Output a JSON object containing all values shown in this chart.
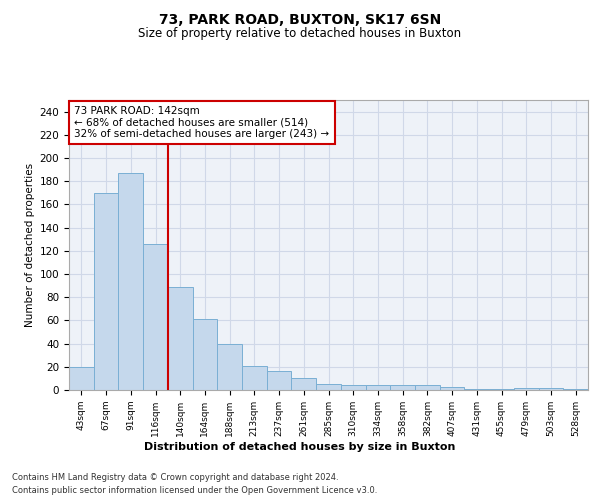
{
  "title_line1": "73, PARK ROAD, BUXTON, SK17 6SN",
  "title_line2": "Size of property relative to detached houses in Buxton",
  "xlabel": "Distribution of detached houses by size in Buxton",
  "ylabel": "Number of detached properties",
  "categories": [
    "43sqm",
    "67sqm",
    "91sqm",
    "116sqm",
    "140sqm",
    "164sqm",
    "188sqm",
    "213sqm",
    "237sqm",
    "261sqm",
    "285sqm",
    "310sqm",
    "334sqm",
    "358sqm",
    "382sqm",
    "407sqm",
    "431sqm",
    "455sqm",
    "479sqm",
    "503sqm",
    "528sqm"
  ],
  "values": [
    20,
    170,
    187,
    126,
    89,
    61,
    40,
    21,
    16,
    10,
    5,
    4,
    4,
    4,
    4,
    3,
    1,
    1,
    2,
    2,
    1
  ],
  "bar_color": "#c5d8ec",
  "bar_edge_color": "#7aafd4",
  "vline_color": "#cc0000",
  "annotation_text": "73 PARK ROAD: 142sqm\n← 68% of detached houses are smaller (514)\n32% of semi-detached houses are larger (243) →",
  "annotation_box_facecolor": "#ffffff",
  "annotation_box_edgecolor": "#cc0000",
  "ylim": [
    0,
    250
  ],
  "yticks": [
    0,
    20,
    40,
    60,
    80,
    100,
    120,
    140,
    160,
    180,
    200,
    220,
    240
  ],
  "footer_line1": "Contains HM Land Registry data © Crown copyright and database right 2024.",
  "footer_line2": "Contains public sector information licensed under the Open Government Licence v3.0.",
  "background_color": "#ffffff",
  "grid_color": "#d0d8e8"
}
